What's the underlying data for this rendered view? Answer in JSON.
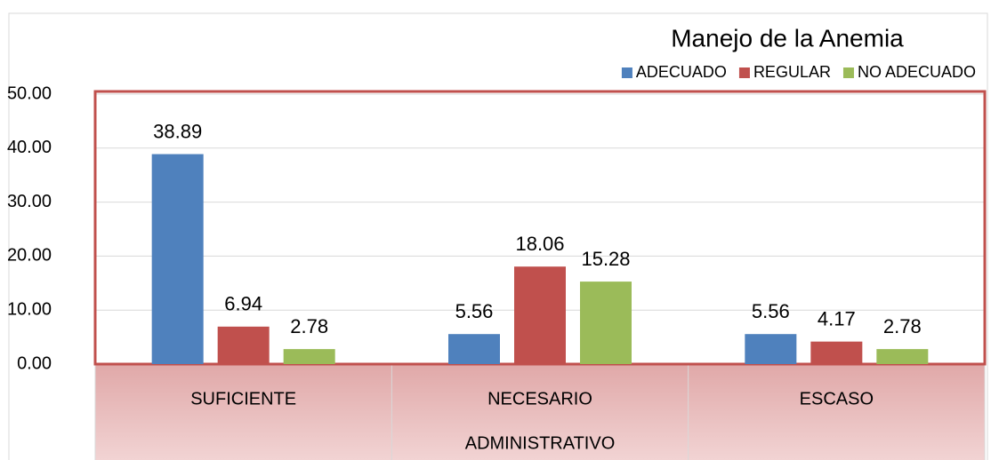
{
  "chart_data": {
    "type": "bar",
    "title": "Manejo de la Anemia",
    "x_label": "ADMINISTRATIVO",
    "categories": [
      "SUFICIENTE",
      "NECESARIO",
      "ESCASO"
    ],
    "series": [
      {
        "name": "ADECUADO",
        "color": "#4f81bd",
        "values": [
          38.89,
          5.56,
          5.56
        ]
      },
      {
        "name": "REGULAR",
        "color": "#c0504d",
        "values": [
          6.94,
          18.06,
          4.17
        ]
      },
      {
        "name": "NO ADECUADO",
        "color": "#9bbb59",
        "values": [
          2.78,
          15.28,
          2.78
        ]
      }
    ],
    "ylim": [
      0,
      50
    ],
    "yticks": [
      {
        "value": 0,
        "label": "0.00"
      },
      {
        "value": 10,
        "label": "10.00"
      },
      {
        "value": 20,
        "label": "20.00"
      },
      {
        "value": 30,
        "label": "30.00"
      },
      {
        "value": 40,
        "label": "40.00"
      },
      {
        "value": 50,
        "label": "50.00"
      }
    ],
    "grid": true,
    "legend": "top-right"
  }
}
